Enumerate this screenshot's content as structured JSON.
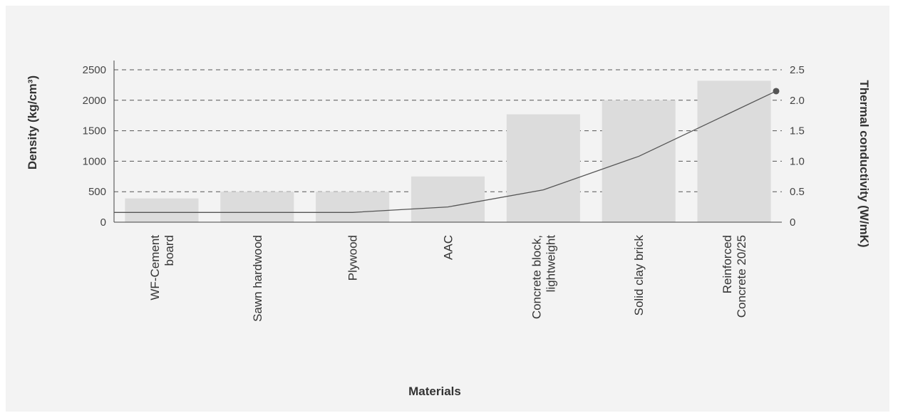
{
  "chart_data": {
    "type": "bar",
    "title": "",
    "xlabel": "Materials",
    "ylabel": "Density (kg/cm³)",
    "y2label": "Thermal conductivity (W/mK)",
    "categories": [
      [
        "WF-Cement",
        "board"
      ],
      [
        "Sawn hardwood"
      ],
      [
        "Plywood"
      ],
      [
        "AAC"
      ],
      [
        "Concrete block,",
        "lightweight"
      ],
      [
        "Solid clay brick"
      ],
      [
        "Reinforced",
        "Concrete 20/25"
      ]
    ],
    "series": [
      {
        "type": "bar",
        "axis": "left",
        "values": [
          390,
          500,
          500,
          750,
          1770,
          2000,
          2320
        ]
      },
      {
        "type": "line",
        "axis": "right",
        "values": [
          0.16,
          0.16,
          0.16,
          0.25,
          0.53,
          1.08,
          2.15
        ]
      }
    ],
    "ylim": [
      0,
      2500
    ],
    "y2lim": [
      0,
      2.5
    ],
    "yticks": [
      "0",
      "500",
      "1000",
      "1500",
      "2000",
      "2500"
    ],
    "y2ticks": [
      "0",
      "0.5",
      "1.0",
      "1.5",
      "2.0",
      "2.5"
    ],
    "grid": true,
    "colors": {
      "bar": "#dcdcdc",
      "line": "#555555",
      "grid": "#555555",
      "background": "#f3f3f3"
    }
  }
}
